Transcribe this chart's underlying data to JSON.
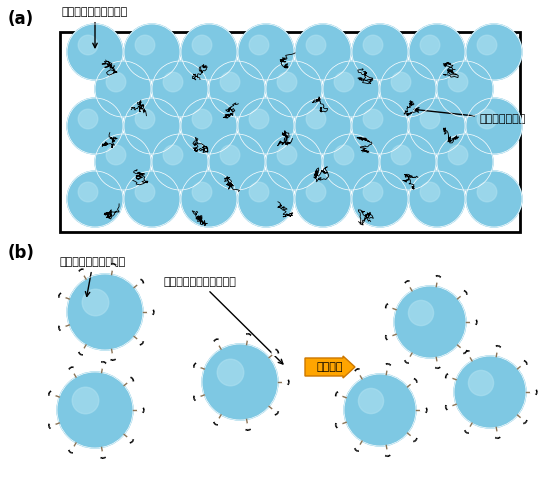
{
  "title_a": "(a)",
  "title_b": "(b)",
  "label_ceramic_a": "セラミックス原料粒子",
  "label_binder_a": "有機バインダー",
  "label_ceramic_b": "セラミックス原料粒子",
  "label_monolayer": "単分子層有機バインダー",
  "label_stimulus": "外部刺激",
  "ball_color": "#7EC8E3",
  "ball_color_light": "#ADE0F0",
  "background": "#ffffff",
  "rect_color": "#ffffff",
  "rect_edge": "#000000"
}
